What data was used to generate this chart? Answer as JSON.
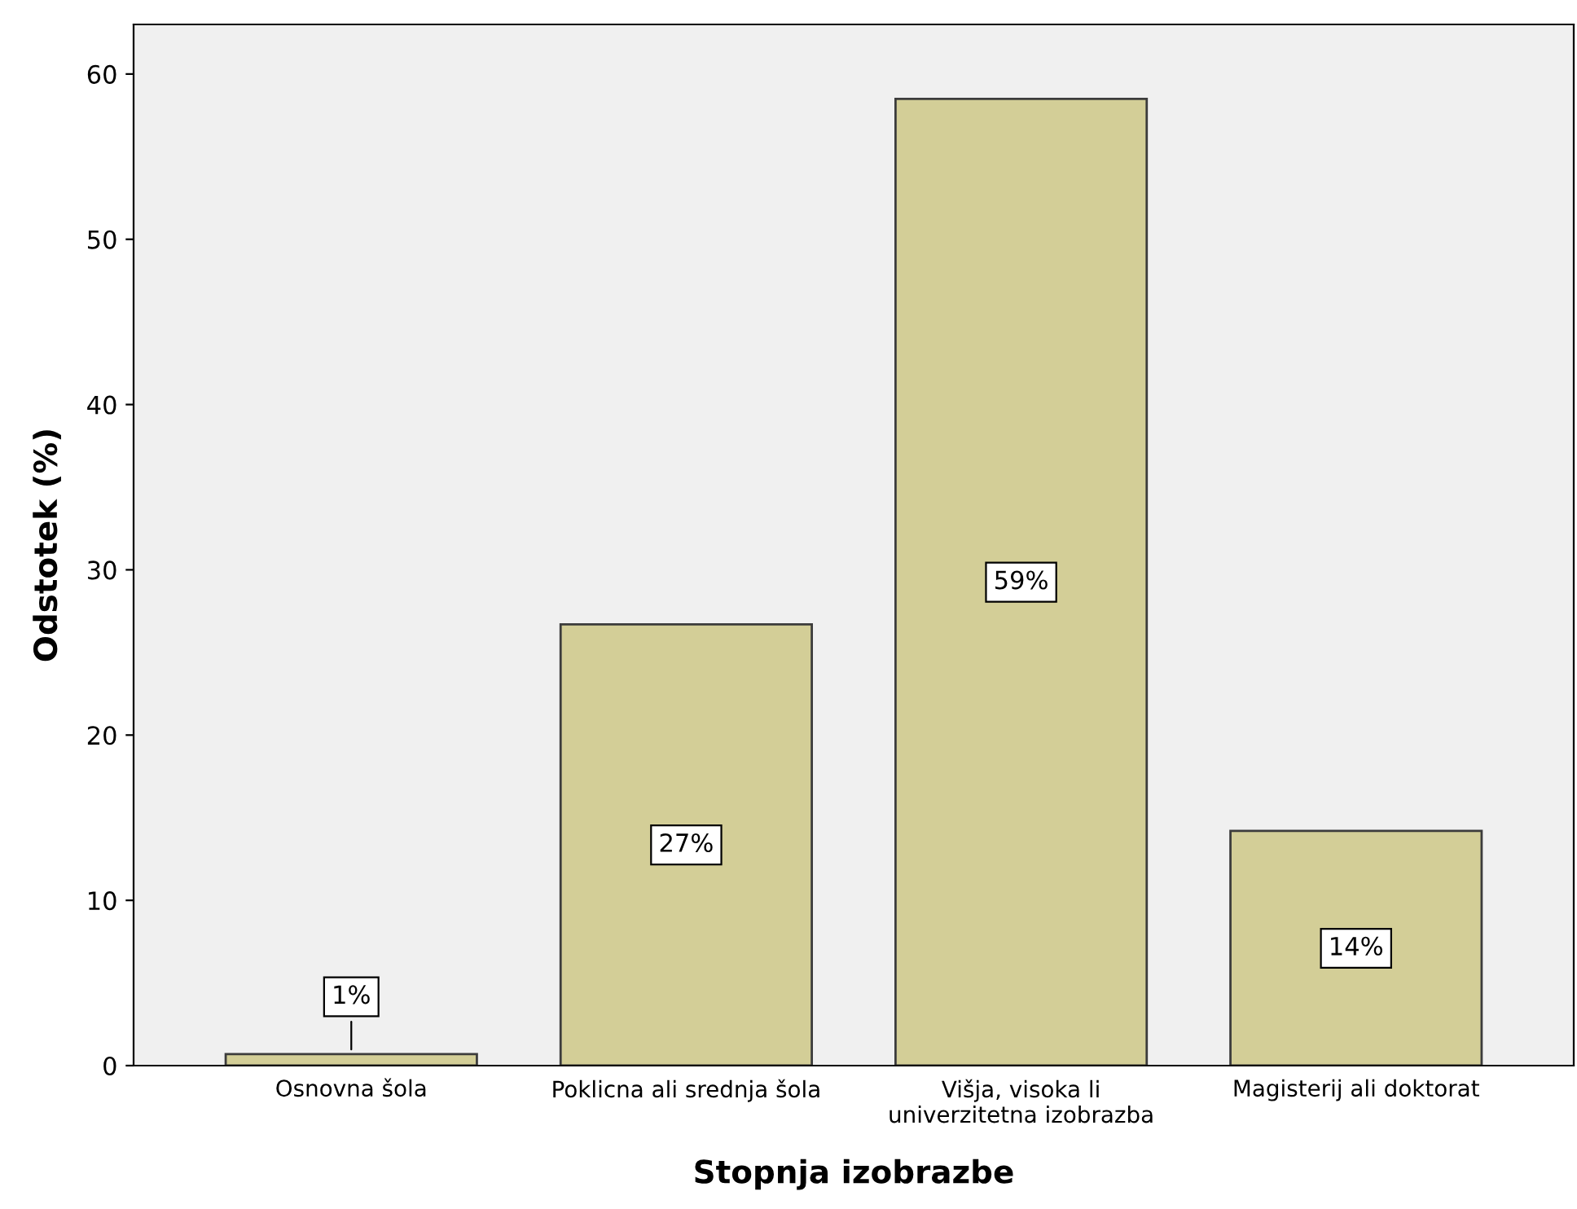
{
  "chart_data": {
    "type": "bar",
    "xlabel": "Stopnja izobrazbe",
    "ylabel": "Odstotek (%)",
    "categories": [
      "Osnovna šola",
      "Poklicna ali srednja šola",
      "Višja, visoka li\nuniverzitetna izobrazba",
      "Magisterij ali doktorat"
    ],
    "values": [
      0.7,
      26.7,
      58.5,
      14.2
    ],
    "value_labels": [
      "1%",
      "27%",
      "59%",
      "14%"
    ],
    "color": "#d3ce97",
    "ylim": [
      0,
      63
    ],
    "yticks": [
      0,
      10,
      20,
      30,
      40,
      50,
      60
    ],
    "grid": false
  }
}
